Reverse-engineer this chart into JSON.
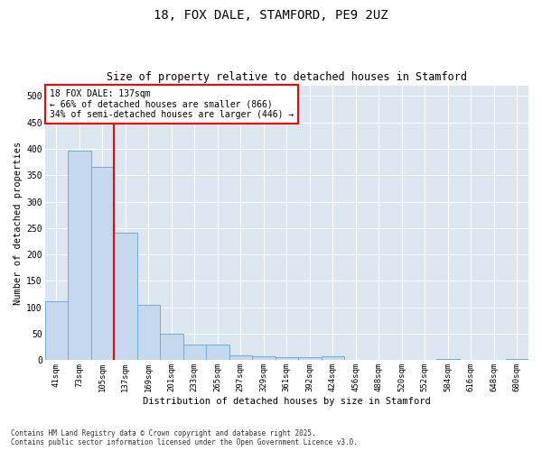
{
  "title_line1": "18, FOX DALE, STAMFORD, PE9 2UZ",
  "title_line2": "Size of property relative to detached houses in Stamford",
  "xlabel": "Distribution of detached houses by size in Stamford",
  "ylabel": "Number of detached properties",
  "categories": [
    "41sqm",
    "73sqm",
    "105sqm",
    "137sqm",
    "169sqm",
    "201sqm",
    "233sqm",
    "265sqm",
    "297sqm",
    "329sqm",
    "361sqm",
    "392sqm",
    "424sqm",
    "456sqm",
    "488sqm",
    "520sqm",
    "552sqm",
    "584sqm",
    "616sqm",
    "648sqm",
    "680sqm"
  ],
  "values": [
    112,
    397,
    365,
    242,
    105,
    50,
    29,
    29,
    9,
    7,
    5,
    5,
    7,
    0,
    0,
    1,
    0,
    3,
    0,
    0,
    3
  ],
  "bar_color": "#c5d8ee",
  "bar_edge_color": "#6baed6",
  "vline_color": "red",
  "vline_index": 3,
  "annotation_text": "18 FOX DALE: 137sqm\n← 66% of detached houses are smaller (866)\n34% of semi-detached houses are larger (446) →",
  "annotation_box_color": "white",
  "annotation_box_edge_color": "red",
  "ylim": [
    0,
    520
  ],
  "yticks": [
    0,
    50,
    100,
    150,
    200,
    250,
    300,
    350,
    400,
    450,
    500
  ],
  "background_color": "#dce6f1",
  "grid_color": "white",
  "footnote": "Contains HM Land Registry data © Crown copyright and database right 2025.\nContains public sector information licensed under the Open Government Licence v3.0."
}
